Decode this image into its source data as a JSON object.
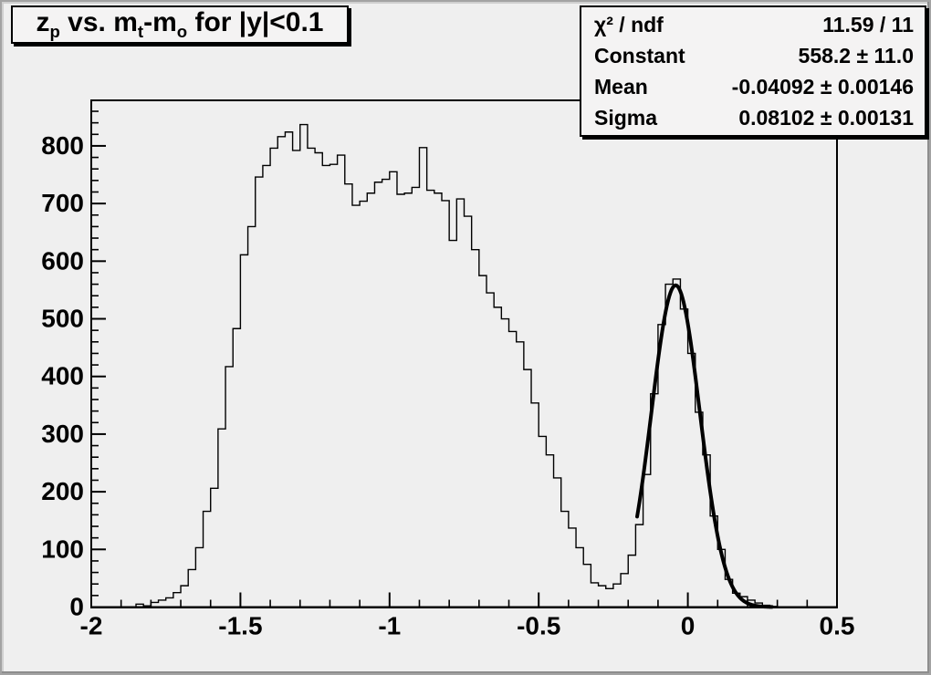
{
  "canvas": {
    "background": "#efefef",
    "plot_background": "#efefef",
    "line_color": "#000000",
    "box_fill": "#f4f3f3"
  },
  "title": {
    "text": "z_p vs. m_t-m_o for |y|<0.1",
    "parts": [
      {
        "text": "z",
        "sub": false
      },
      {
        "text": "p",
        "sub": true
      },
      {
        "text": " vs. m",
        "sub": false
      },
      {
        "text": "t",
        "sub": true
      },
      {
        "text": "-m",
        "sub": false
      },
      {
        "text": "o",
        "sub": true
      },
      {
        "text": " for |y|<0.1",
        "sub": false
      }
    ]
  },
  "stats": {
    "rows": [
      {
        "label": "χ² / ndf",
        "value": "11.59 / 11"
      },
      {
        "label": "Constant",
        "value": "558.2 ± 11.0"
      },
      {
        "label": "Mean",
        "value": "-0.04092 ± 0.00146"
      },
      {
        "label": "Sigma",
        "value": "0.08102 ± 0.00131"
      }
    ]
  },
  "chart_data": {
    "type": "bar",
    "subtype": "histogram-step-outline",
    "title": "z_p vs. m_t-m_o for |y|<0.1",
    "xlabel": "",
    "ylabel": "",
    "xlim": [
      -2.0,
      0.5
    ],
    "ylim": [
      0,
      879
    ],
    "grid": false,
    "legend": false,
    "x_start": -2.0,
    "bin_width": 0.025,
    "n_bins": 100,
    "values": [
      0,
      0,
      0,
      0,
      0,
      0,
      5,
      2,
      8,
      12,
      16,
      25,
      37,
      65,
      103,
      166,
      206,
      309,
      417,
      483,
      611,
      660,
      746,
      766,
      796,
      816,
      824,
      792,
      837,
      796,
      788,
      766,
      768,
      784,
      734,
      697,
      704,
      718,
      737,
      742,
      755,
      716,
      718,
      728,
      797,
      723,
      718,
      705,
      636,
      708,
      678,
      620,
      575,
      545,
      520,
      500,
      478,
      460,
      412,
      354,
      296,
      264,
      224,
      166,
      137,
      103,
      74,
      42,
      37,
      32,
      40,
      58,
      90,
      143,
      230,
      370,
      490,
      560,
      569,
      517,
      440,
      338,
      264,
      158,
      100,
      48,
      24,
      18,
      12,
      7,
      3,
      1,
      0,
      0,
      0,
      0,
      0,
      0,
      0,
      0
    ],
    "x_major_ticks": [
      -2,
      -1.5,
      -1,
      -0.5,
      0,
      0.5
    ],
    "x_tick_labels": [
      "-2",
      "-1.5",
      "-1",
      "-0.5",
      "0",
      "0.5"
    ],
    "x_minor_step": 0.1,
    "y_major_ticks": [
      0,
      100,
      200,
      300,
      400,
      500,
      600,
      700,
      800
    ],
    "y_tick_labels": [
      "0",
      "100",
      "200",
      "300",
      "400",
      "500",
      "600",
      "700",
      "800"
    ],
    "y_minor_step": 20,
    "fit_curve": {
      "type": "gaussian",
      "constant": 558.2,
      "mean": -0.04092,
      "sigma": 0.08102,
      "range": [
        -0.17,
        0.285
      ],
      "line_width": 4
    }
  }
}
